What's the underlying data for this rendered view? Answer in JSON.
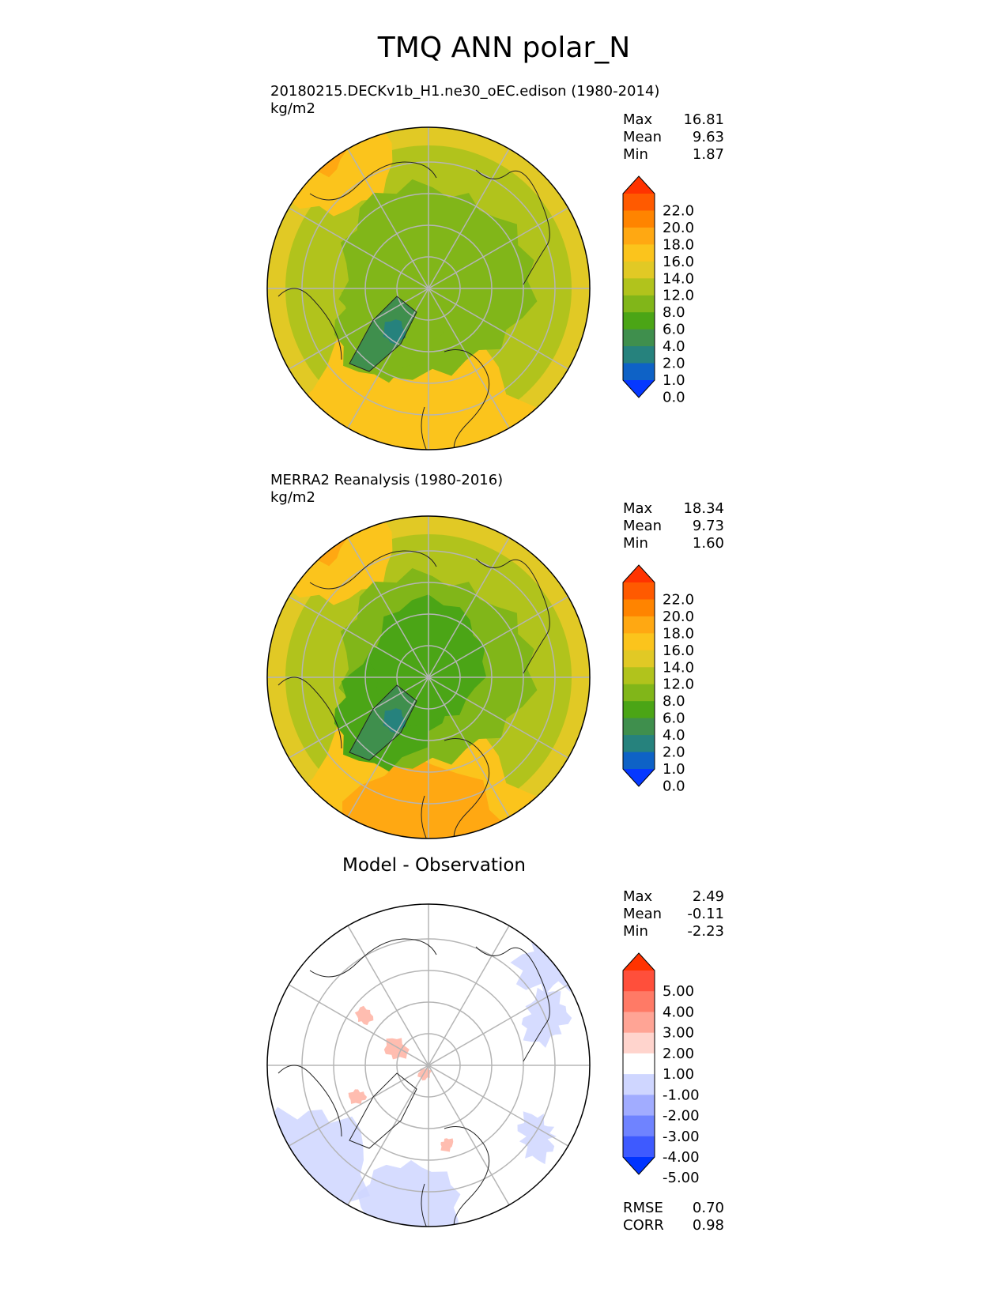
{
  "figure": {
    "title": "TMQ ANN polar_N"
  },
  "panels": [
    {
      "title_lines": [
        "20180215.DECKv1b_H1.ne30_oEC.edison (1980-2014)",
        "kg/m2"
      ],
      "center_title": "",
      "stats": [
        {
          "label": "Max",
          "value": "16.81"
        },
        {
          "label": "Mean",
          "value": "9.63"
        },
        {
          "label": "Min",
          "value": "1.87"
        }
      ],
      "footer_stats": [],
      "colorbar": {
        "labels": [
          "22.0",
          "20.0",
          "18.0",
          "16.0",
          "14.0",
          "12.0",
          "8.0",
          "6.0",
          "4.0",
          "2.0",
          "1.0",
          "0.0"
        ],
        "colors": [
          "#ff3300",
          "#ff5a00",
          "#ff8400",
          "#ffa812",
          "#fbc41c",
          "#e1c925",
          "#b1c31c",
          "#81b619",
          "#4ba516",
          "#3f8f4d",
          "#26827d",
          "#0e62c6",
          "#0538ff"
        ]
      },
      "map_style": "model"
    },
    {
      "title_lines": [
        "MERRA2 Reanalysis (1980-2016)",
        "kg/m2"
      ],
      "center_title": "",
      "stats": [
        {
          "label": "Max",
          "value": "18.34"
        },
        {
          "label": "Mean",
          "value": "9.73"
        },
        {
          "label": "Min",
          "value": "1.60"
        }
      ],
      "footer_stats": [],
      "colorbar": {
        "labels": [
          "22.0",
          "20.0",
          "18.0",
          "16.0",
          "14.0",
          "12.0",
          "8.0",
          "6.0",
          "4.0",
          "2.0",
          "1.0",
          "0.0"
        ],
        "colors": [
          "#ff3300",
          "#ff5a00",
          "#ff8400",
          "#ffa812",
          "#fbc41c",
          "#e1c925",
          "#b1c31c",
          "#81b619",
          "#4ba516",
          "#3f8f4d",
          "#26827d",
          "#0e62c6",
          "#0538ff"
        ]
      },
      "map_style": "obs"
    },
    {
      "title_lines": [],
      "center_title": "Model - Observation",
      "stats": [
        {
          "label": "Max",
          "value": "2.49"
        },
        {
          "label": "Mean",
          "value": "-0.11"
        },
        {
          "label": "Min",
          "value": "-2.23"
        }
      ],
      "footer_stats": [
        {
          "label": "RMSE",
          "value": "0.70"
        },
        {
          "label": "CORR",
          "value": "0.98"
        }
      ],
      "colorbar": {
        "labels": [
          "5.00",
          "4.00",
          "3.00",
          "2.00",
          "1.00",
          "-1.00",
          "-2.00",
          "-3.00",
          "-4.00",
          "-5.00"
        ],
        "colors": [
          "#ff3300",
          "#ff4f3b",
          "#ff7a66",
          "#ffa495",
          "#ffd4cd",
          "#ffffff",
          "#cfd6ff",
          "#a1acff",
          "#6f83ff",
          "#3e5aff",
          "#0034ff"
        ]
      },
      "map_style": "diff"
    }
  ]
}
